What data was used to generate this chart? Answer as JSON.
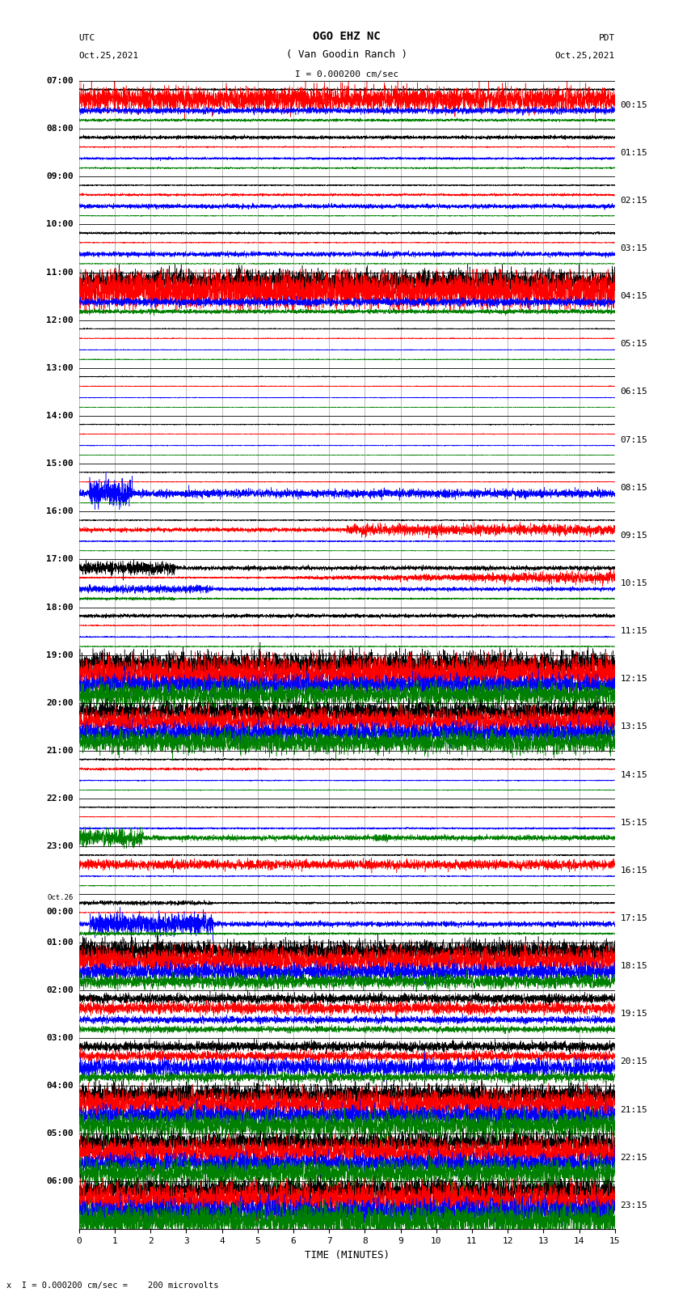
{
  "title_line1": "OGO EHZ NC",
  "title_line2": "( Van Goodin Ranch )",
  "title_line3": "I = 0.000200 cm/sec",
  "left_label_top": "UTC",
  "left_label_date": "Oct.25,2021",
  "right_label_top": "PDT",
  "right_label_date": "Oct.25,2021",
  "xlabel": "TIME (MINUTES)",
  "bottom_note": "x  I = 0.000200 cm/sec =    200 microvolts",
  "utc_times": [
    "07:00",
    "08:00",
    "09:00",
    "10:00",
    "11:00",
    "12:00",
    "13:00",
    "14:00",
    "15:00",
    "16:00",
    "17:00",
    "18:00",
    "19:00",
    "20:00",
    "21:00",
    "22:00",
    "23:00",
    "Oct.26\n00:00",
    "01:00",
    "02:00",
    "03:00",
    "04:00",
    "05:00",
    "06:00"
  ],
  "pdt_times": [
    "00:15",
    "01:15",
    "02:15",
    "03:15",
    "04:15",
    "05:15",
    "06:15",
    "07:15",
    "08:15",
    "09:15",
    "10:15",
    "11:15",
    "12:15",
    "13:15",
    "14:15",
    "15:15",
    "16:15",
    "17:15",
    "18:15",
    "19:15",
    "20:15",
    "21:15",
    "22:15",
    "23:15"
  ],
  "n_rows": 24,
  "colors": [
    "black",
    "red",
    "blue",
    "green"
  ],
  "x_min": 0,
  "x_max": 15,
  "fig_width": 8.5,
  "fig_height": 16.13,
  "dpi": 100,
  "bg_color": "white"
}
